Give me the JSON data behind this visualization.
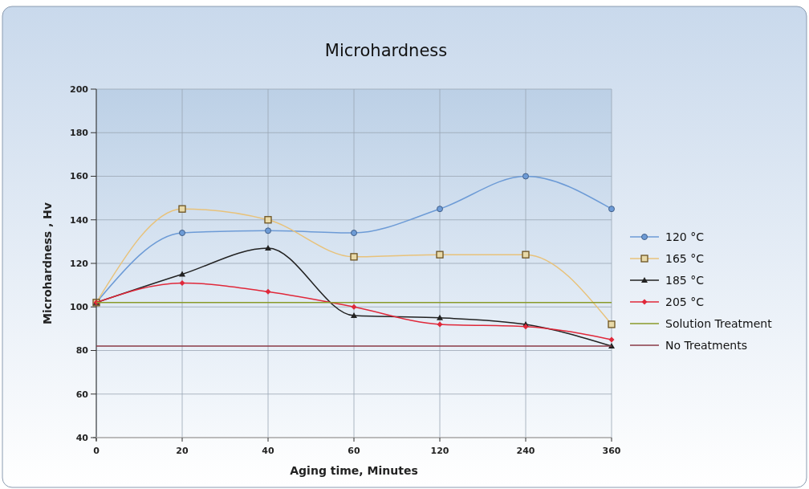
{
  "chart_data": {
    "type": "line",
    "title": "Microhardness",
    "xlabel": "Aging time, Minutes",
    "ylabel": "Microhardness , Hv",
    "categories": [
      "0",
      "20",
      "40",
      "60",
      "120",
      "240",
      "360"
    ],
    "series": [
      {
        "name": "120 °C",
        "color": "#6d9bd6",
        "marker": "circle",
        "values": [
          102,
          134,
          135,
          134,
          145,
          160,
          145
        ]
      },
      {
        "name": "165 °C",
        "color": "#e8c27a",
        "marker": "square",
        "values": [
          102,
          145,
          140,
          123,
          124,
          124,
          92
        ]
      },
      {
        "name": "185 °C",
        "color": "#222222",
        "marker": "triangle",
        "values": [
          102,
          115,
          127,
          96,
          95,
          92,
          82
        ]
      },
      {
        "name": "205 °C",
        "color": "#e0283a",
        "marker": "diamond",
        "values": [
          102,
          111,
          107,
          100,
          92,
          91,
          85
        ]
      },
      {
        "name": "Solution Treatment",
        "color": "#8a9a2a",
        "marker": "none",
        "values": [
          102,
          102,
          102,
          102,
          102,
          102,
          102
        ]
      },
      {
        "name": "No Treatments",
        "color": "#8a3a46",
        "marker": "none",
        "values": [
          82,
          82,
          82,
          82,
          82,
          82,
          82
        ]
      }
    ],
    "ylim": [
      40,
      200
    ],
    "yticks": [
      40,
      60,
      80,
      100,
      120,
      140,
      160,
      180,
      200
    ],
    "grid": true,
    "legend": "right"
  }
}
